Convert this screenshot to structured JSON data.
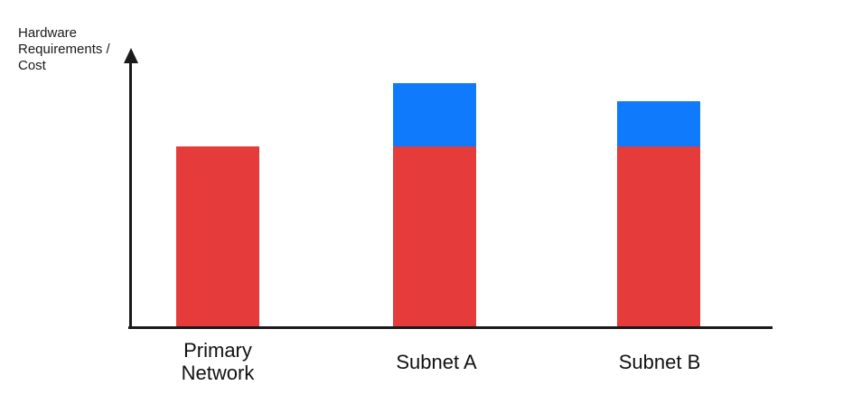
{
  "chart_data": {
    "type": "bar",
    "stacked": true,
    "title": "",
    "xlabel": "",
    "ylabel": "Hardware Requirements / Cost",
    "ylabel_display": "Hardware\nRequirements /\nCost",
    "categories": [
      "Primary Network",
      "Subnet A",
      "Subnet B"
    ],
    "category_display": [
      "Primary\nNetwork",
      "Subnet A",
      "Subnet B"
    ],
    "series": [
      {
        "name": "red",
        "color": "#e53b3b",
        "values": [
          200,
          200,
          200
        ]
      },
      {
        "name": "blue",
        "color": "#0f7afc",
        "values": [
          0,
          70,
          50
        ]
      }
    ],
    "totals": [
      200,
      270,
      250
    ],
    "ylim": [
      0,
      300
    ],
    "value_tick_labels": false,
    "grid": false,
    "legend": false,
    "axis_color": "#1a1a1a",
    "text_color": "#111111"
  }
}
